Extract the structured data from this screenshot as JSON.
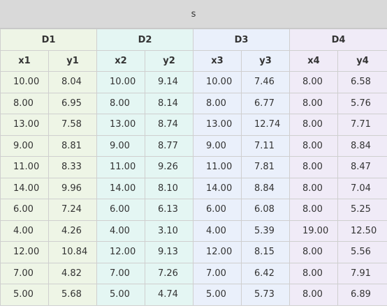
{
  "title": "s",
  "groups": [
    {
      "label": "D1",
      "color": "#eef5e6"
    },
    {
      "label": "D2",
      "color": "#e4f6f3"
    },
    {
      "label": "D3",
      "color": "#eaf0fb"
    },
    {
      "label": "D4",
      "color": "#f0ebf7"
    }
  ],
  "columns": [
    "x1",
    "y1",
    "x2",
    "y2",
    "x3",
    "y3",
    "x4",
    "y4"
  ],
  "rows": [
    [
      "10.00",
      "8.04",
      "10.00",
      "9.14",
      "10.00",
      "7.46",
      "8.00",
      "6.58"
    ],
    [
      "8.00",
      "6.95",
      "8.00",
      "8.14",
      "8.00",
      "6.77",
      "8.00",
      "5.76"
    ],
    [
      "13.00",
      "7.58",
      "13.00",
      "8.74",
      "13.00",
      "12.74",
      "8.00",
      "7.71"
    ],
    [
      "9.00",
      "8.81",
      "9.00",
      "8.77",
      "9.00",
      "7.11",
      "8.00",
      "8.84"
    ],
    [
      "11.00",
      "8.33",
      "11.00",
      "9.26",
      "11.00",
      "7.81",
      "8.00",
      "8.47"
    ],
    [
      "14.00",
      "9.96",
      "14.00",
      "8.10",
      "14.00",
      "8.84",
      "8.00",
      "7.04"
    ],
    [
      "6.00",
      "7.24",
      "6.00",
      "6.13",
      "6.00",
      "6.08",
      "8.00",
      "5.25"
    ],
    [
      "4.00",
      "4.26",
      "4.00",
      "3.10",
      "4.00",
      "5.39",
      "19.00",
      "12.50"
    ],
    [
      "12.00",
      "10.84",
      "12.00",
      "9.13",
      "12.00",
      "8.15",
      "8.00",
      "5.56"
    ],
    [
      "7.00",
      "4.82",
      "7.00",
      "7.26",
      "7.00",
      "6.42",
      "8.00",
      "7.91"
    ],
    [
      "5.00",
      "5.68",
      "5.00",
      "4.74",
      "5.00",
      "5.73",
      "8.00",
      "6.89"
    ]
  ]
}
